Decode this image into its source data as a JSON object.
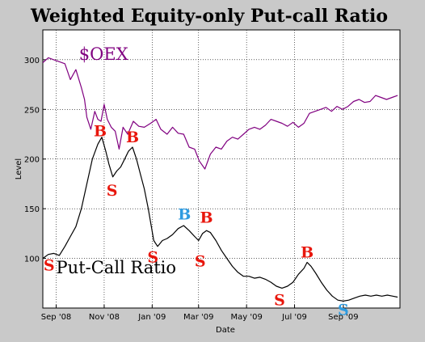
{
  "chart_data": {
    "type": "line",
    "title": "Weighted Equity-only Put-call Ratio",
    "xlabel": "Date",
    "ylabel": "Level",
    "xlim": [
      "2008-08-15",
      "2009-11-12"
    ],
    "ylim": [
      50,
      330
    ],
    "x_ticks": [
      {
        "date": "2008-09-01",
        "label": "Sep '08"
      },
      {
        "date": "2008-11-01",
        "label": "Nov '08"
      },
      {
        "date": "2009-01-01",
        "label": "Jan '09"
      },
      {
        "date": "2009-03-01",
        "label": "Mar '09"
      },
      {
        "date": "2009-05-01",
        "label": "May '09"
      },
      {
        "date": "2009-07-01",
        "label": "Jul '09"
      },
      {
        "date": "2009-09-01",
        "label": "Sep '09"
      }
    ],
    "y_ticks": [
      100,
      150,
      200,
      250,
      300
    ],
    "grid": true,
    "series": [
      {
        "name": "$OEX",
        "color": "#800080",
        "points": [
          [
            "2008-08-15",
            297
          ],
          [
            "2008-08-22",
            302
          ],
          [
            "2008-08-29",
            300
          ],
          [
            "2008-09-05",
            298
          ],
          [
            "2008-09-12",
            296
          ],
          [
            "2008-09-19",
            280
          ],
          [
            "2008-09-26",
            290
          ],
          [
            "2008-10-03",
            272
          ],
          [
            "2008-10-07",
            260
          ],
          [
            "2008-10-10",
            242
          ],
          [
            "2008-10-15",
            230
          ],
          [
            "2008-10-20",
            248
          ],
          [
            "2008-10-24",
            240
          ],
          [
            "2008-10-28",
            238
          ],
          [
            "2008-11-01",
            255
          ],
          [
            "2008-11-05",
            240
          ],
          [
            "2008-11-10",
            232
          ],
          [
            "2008-11-15",
            228
          ],
          [
            "2008-11-20",
            210
          ],
          [
            "2008-11-25",
            232
          ],
          [
            "2008-12-01",
            225
          ],
          [
            "2008-12-08",
            238
          ],
          [
            "2008-12-15",
            233
          ],
          [
            "2008-12-22",
            232
          ],
          [
            "2008-12-30",
            236
          ],
          [
            "2009-01-06",
            240
          ],
          [
            "2009-01-12",
            230
          ],
          [
            "2009-01-20",
            225
          ],
          [
            "2009-01-27",
            232
          ],
          [
            "2009-02-03",
            226
          ],
          [
            "2009-02-10",
            225
          ],
          [
            "2009-02-17",
            212
          ],
          [
            "2009-02-24",
            210
          ],
          [
            "2009-03-02",
            198
          ],
          [
            "2009-03-09",
            190
          ],
          [
            "2009-03-16",
            205
          ],
          [
            "2009-03-23",
            212
          ],
          [
            "2009-03-30",
            210
          ],
          [
            "2009-04-06",
            218
          ],
          [
            "2009-04-13",
            222
          ],
          [
            "2009-04-20",
            220
          ],
          [
            "2009-04-27",
            225
          ],
          [
            "2009-05-04",
            230
          ],
          [
            "2009-05-11",
            232
          ],
          [
            "2009-05-18",
            230
          ],
          [
            "2009-05-25",
            234
          ],
          [
            "2009-06-01",
            240
          ],
          [
            "2009-06-08",
            238
          ],
          [
            "2009-06-15",
            236
          ],
          [
            "2009-06-22",
            233
          ],
          [
            "2009-06-29",
            237
          ],
          [
            "2009-07-06",
            232
          ],
          [
            "2009-07-13",
            236
          ],
          [
            "2009-07-20",
            246
          ],
          [
            "2009-07-27",
            248
          ],
          [
            "2009-08-03",
            250
          ],
          [
            "2009-08-10",
            252
          ],
          [
            "2009-08-17",
            248
          ],
          [
            "2009-08-24",
            253
          ],
          [
            "2009-08-31",
            250
          ],
          [
            "2009-09-07",
            253
          ],
          [
            "2009-09-14",
            258
          ],
          [
            "2009-09-21",
            260
          ],
          [
            "2009-09-28",
            257
          ],
          [
            "2009-10-05",
            258
          ],
          [
            "2009-10-12",
            264
          ],
          [
            "2009-10-19",
            262
          ],
          [
            "2009-10-26",
            260
          ],
          [
            "2009-11-02",
            262
          ],
          [
            "2009-11-09",
            264
          ]
        ]
      },
      {
        "name": "Put-Call Ratio",
        "color": "#000000",
        "points": [
          [
            "2008-08-15",
            100
          ],
          [
            "2008-08-22",
            104
          ],
          [
            "2008-08-29",
            105
          ],
          [
            "2008-09-05",
            103
          ],
          [
            "2008-09-12",
            112
          ],
          [
            "2008-09-19",
            122
          ],
          [
            "2008-09-26",
            132
          ],
          [
            "2008-10-03",
            150
          ],
          [
            "2008-10-10",
            175
          ],
          [
            "2008-10-17",
            200
          ],
          [
            "2008-10-24",
            215
          ],
          [
            "2008-10-29",
            222
          ],
          [
            "2008-11-03",
            208
          ],
          [
            "2008-11-07",
            195
          ],
          [
            "2008-11-12",
            182
          ],
          [
            "2008-11-17",
            188
          ],
          [
            "2008-11-22",
            192
          ],
          [
            "2008-11-27",
            200
          ],
          [
            "2008-12-02",
            208
          ],
          [
            "2008-12-07",
            212
          ],
          [
            "2008-12-12",
            200
          ],
          [
            "2008-12-17",
            185
          ],
          [
            "2008-12-22",
            170
          ],
          [
            "2008-12-27",
            150
          ],
          [
            "2009-01-03",
            118
          ],
          [
            "2009-01-08",
            112
          ],
          [
            "2009-01-14",
            118
          ],
          [
            "2009-01-20",
            120
          ],
          [
            "2009-01-27",
            124
          ],
          [
            "2009-02-03",
            130
          ],
          [
            "2009-02-10",
            133
          ],
          [
            "2009-02-17",
            128
          ],
          [
            "2009-02-24",
            122
          ],
          [
            "2009-03-01",
            118
          ],
          [
            "2009-03-06",
            125
          ],
          [
            "2009-03-11",
            128
          ],
          [
            "2009-03-16",
            126
          ],
          [
            "2009-03-23",
            118
          ],
          [
            "2009-03-30",
            108
          ],
          [
            "2009-04-06",
            100
          ],
          [
            "2009-04-13",
            92
          ],
          [
            "2009-04-20",
            86
          ],
          [
            "2009-04-27",
            82
          ],
          [
            "2009-05-04",
            82
          ],
          [
            "2009-05-11",
            80
          ],
          [
            "2009-05-18",
            81
          ],
          [
            "2009-05-25",
            79
          ],
          [
            "2009-06-01",
            76
          ],
          [
            "2009-06-08",
            72
          ],
          [
            "2009-06-15",
            70
          ],
          [
            "2009-06-22",
            72
          ],
          [
            "2009-06-29",
            76
          ],
          [
            "2009-07-06",
            84
          ],
          [
            "2009-07-13",
            90
          ],
          [
            "2009-07-17",
            96
          ],
          [
            "2009-07-22",
            92
          ],
          [
            "2009-07-28",
            85
          ],
          [
            "2009-08-04",
            76
          ],
          [
            "2009-08-11",
            68
          ],
          [
            "2009-08-18",
            62
          ],
          [
            "2009-08-25",
            58
          ],
          [
            "2009-09-01",
            57
          ],
          [
            "2009-09-08",
            58
          ],
          [
            "2009-09-15",
            60
          ],
          [
            "2009-09-22",
            62
          ],
          [
            "2009-09-29",
            63
          ],
          [
            "2009-10-06",
            62
          ],
          [
            "2009-10-13",
            63
          ],
          [
            "2009-10-20",
            62
          ],
          [
            "2009-10-27",
            63
          ],
          [
            "2009-11-03",
            62
          ],
          [
            "2009-11-09",
            61
          ]
        ]
      }
    ],
    "series_labels": [
      {
        "text": "$OEX",
        "date": "2008-09-30",
        "value": 300,
        "color": "#800080"
      },
      {
        "text": "Put-Call Ratio",
        "date": "2008-09-01",
        "value": 85,
        "color": "#000000"
      }
    ],
    "annotations": [
      {
        "text": "S",
        "date": "2008-08-23",
        "value": 88,
        "color": "#e8160c"
      },
      {
        "text": "B",
        "date": "2008-10-27",
        "value": 223,
        "color": "#e8160c"
      },
      {
        "text": "S",
        "date": "2008-11-11",
        "value": 163,
        "color": "#e8160c"
      },
      {
        "text": "B",
        "date": "2008-12-07",
        "value": 217,
        "color": "#e8160c"
      },
      {
        "text": "S",
        "date": "2009-01-02",
        "value": 96,
        "color": "#e8160c"
      },
      {
        "text": "B",
        "date": "2009-02-11",
        "value": 139,
        "color": "#2e9be0"
      },
      {
        "text": "S",
        "date": "2009-03-03",
        "value": 92,
        "color": "#e8160c"
      },
      {
        "text": "B",
        "date": "2009-03-11",
        "value": 136,
        "color": "#e8160c"
      },
      {
        "text": "S",
        "date": "2009-06-12",
        "value": 53,
        "color": "#e8160c"
      },
      {
        "text": "B",
        "date": "2009-07-17",
        "value": 101,
        "color": "#e8160c"
      },
      {
        "text": "S",
        "date": "2009-09-01",
        "value": 43,
        "color": "#2e9be0"
      }
    ]
  }
}
